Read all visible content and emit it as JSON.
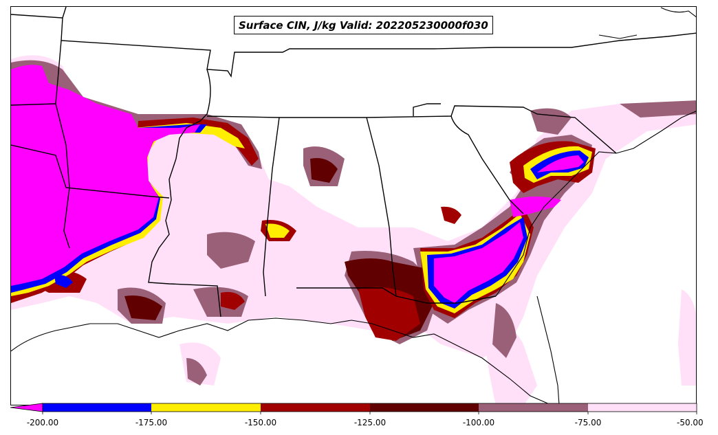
{
  "map": {
    "title": "Surface CIN, J/kg Valid: 202205230000f030",
    "field": "Surface CIN",
    "units": "J/kg",
    "valid": "202205230000f030"
  },
  "colorbar": {
    "tick_labels": [
      "-200.00",
      "-175.00",
      "-150.00",
      "-125.00",
      "-100.00",
      "-75.00",
      "-50.00"
    ],
    "levels": [
      {
        "from": -200,
        "to": -175,
        "color": "#0000ff"
      },
      {
        "from": -175,
        "to": -150,
        "color": "#ffee00"
      },
      {
        "from": -150,
        "to": -125,
        "color": "#a00000"
      },
      {
        "from": -125,
        "to": -100,
        "color": "#600000"
      },
      {
        "from": -100,
        "to": -75,
        "color": "#9a6078"
      },
      {
        "from": -75,
        "to": -50,
        "color": "#ffe0f8"
      }
    ],
    "under_color": "#ff00ff",
    "extend": "min"
  }
}
